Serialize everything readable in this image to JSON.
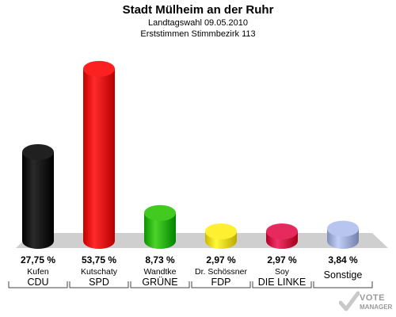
{
  "header": {
    "title": "Stadt Mülheim an der Ruhr",
    "subtitle1": "Landtagswahl 09.05.2010",
    "subtitle2": "Erststimmen Stimmbezirk 113"
  },
  "logo": {
    "line1": "VOTE",
    "line2": "MANAGER",
    "mark_color": "#c9c9c9"
  },
  "chart_data": {
    "type": "bar",
    "title": "Stadt Mülheim an der Ruhr",
    "subtitle": "Landtagswahl 09.05.2010 / Erststimmen Stimmbezirk 113",
    "unit": "%",
    "ylim": [
      0,
      55
    ],
    "grid": false,
    "bars": [
      {
        "candidate": "Kufen",
        "party": "CDU",
        "value": 27.75,
        "label": "27,75 %",
        "color": "#111111"
      },
      {
        "candidate": "Kutschaty",
        "party": "SPD",
        "value": 53.75,
        "label": "53,75 %",
        "color": "#ee1111"
      },
      {
        "candidate": "Wandtke",
        "party": "GRÜNE",
        "value": 8.73,
        "label": "8,73 %",
        "color": "#33bb11"
      },
      {
        "candidate": "Dr. Schössner",
        "party": "FDP",
        "value": 2.97,
        "label": "2,97 %",
        "color": "#f5e022"
      },
      {
        "candidate": "Soy",
        "party": "DIE LINKE",
        "value": 2.97,
        "label": "2,97 %",
        "color": "#d81b4f"
      },
      {
        "candidate": "",
        "party": "Sonstige",
        "value": 3.84,
        "label": "3,84 %",
        "color": "#a9b7e0"
      }
    ]
  }
}
